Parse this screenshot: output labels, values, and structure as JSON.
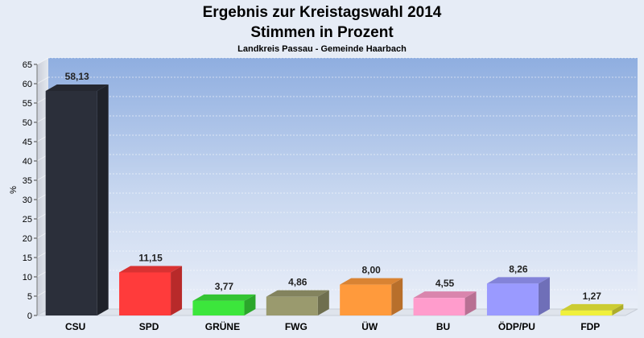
{
  "chart_data": {
    "type": "bar",
    "title": "Ergebnis zur Kreistagswahl 2014",
    "subtitle": "Stimmen in Prozent",
    "caption": "Landkreis Passau - Gemeinde Haarbach",
    "xlabel": "",
    "ylabel": "%",
    "ylim": [
      0,
      65
    ],
    "yticks": [
      0,
      5,
      10,
      15,
      20,
      25,
      30,
      35,
      40,
      45,
      50,
      55,
      60,
      65
    ],
    "grid": true,
    "categories": [
      "CSU",
      "SPD",
      "GRÜNE",
      "FWG",
      "ÜW",
      "BU",
      "ÖDP/PU",
      "FDP"
    ],
    "values": [
      58.13,
      11.15,
      3.77,
      4.86,
      8.0,
      4.55,
      8.26,
      1.27
    ],
    "value_labels": [
      "58,13",
      "11,15",
      "3,77",
      "4,86",
      "8,00",
      "4,55",
      "8,26",
      "1,27"
    ],
    "colors": [
      "#2b2f3a",
      "#ff3b3b",
      "#3ce63c",
      "#9a9a6e",
      "#ff9a3c",
      "#ff9ccc",
      "#9a9aff",
      "#f0f03c"
    ]
  }
}
